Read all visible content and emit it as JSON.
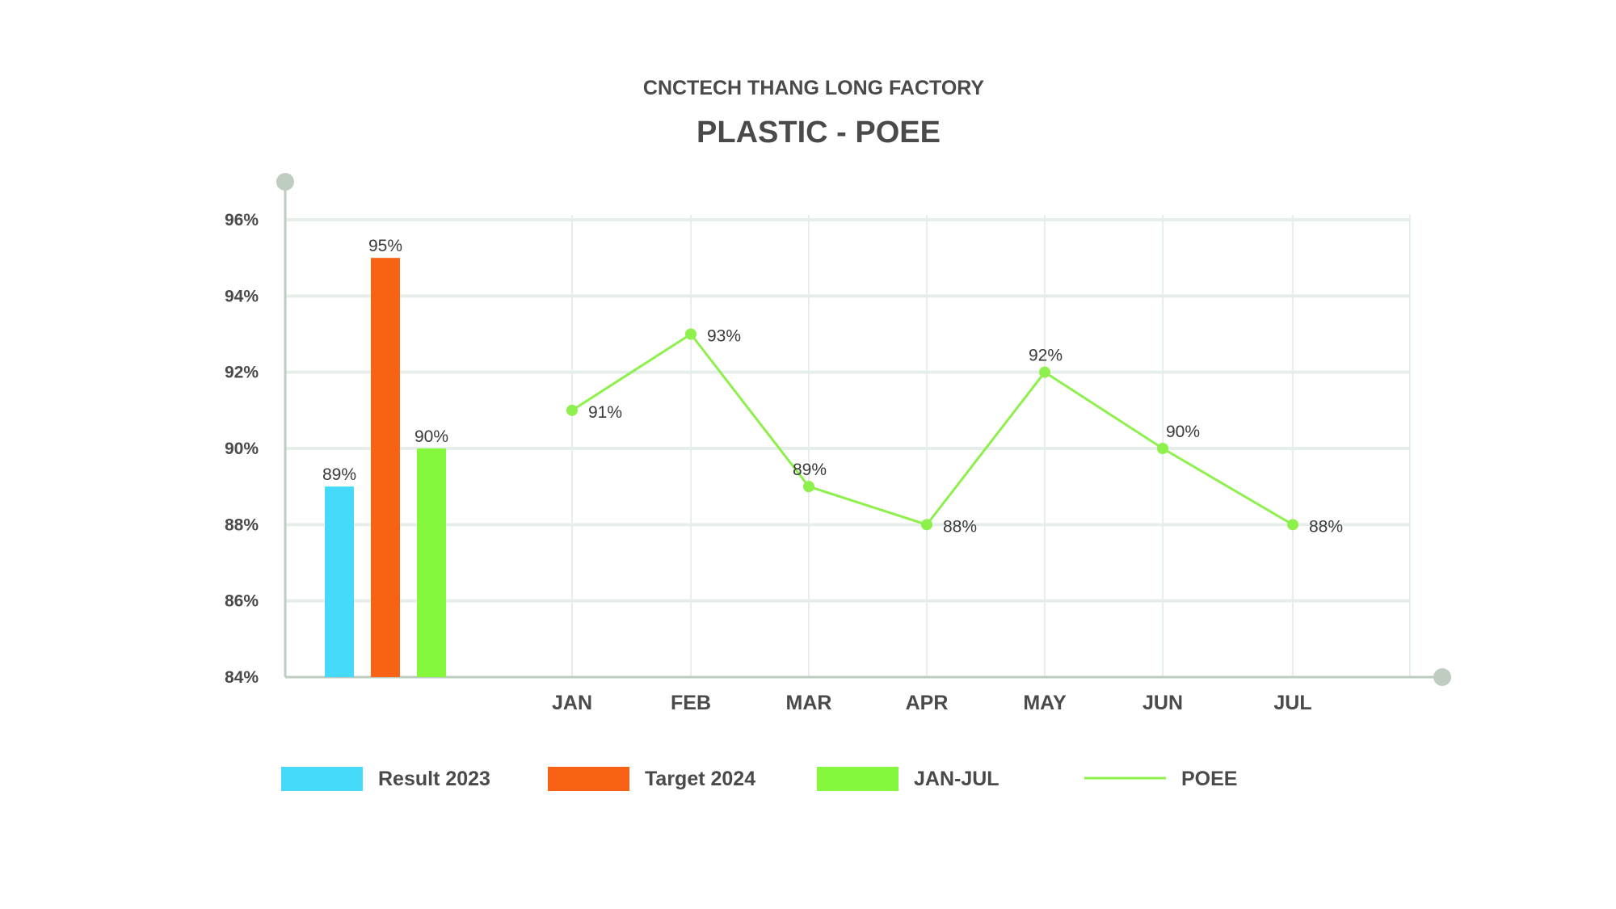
{
  "chart_data": {
    "type": "bar",
    "subtitle": "CNCTECH THANG LONG FACTORY",
    "title": "PLASTIC - POEE",
    "xlabel": "",
    "ylabel": "",
    "ylim": [
      84,
      96
    ],
    "yticks": [
      84,
      86,
      88,
      90,
      92,
      94,
      96
    ],
    "ytick_labels": [
      "84%",
      "86%",
      "88%",
      "90%",
      "92%",
      "94%",
      "96%"
    ],
    "grid": true,
    "legend_position": "bottom",
    "summary_bars": [
      {
        "name": "Result 2023",
        "value": 89,
        "label": "89%",
        "color": "#45d9fa"
      },
      {
        "name": "Target 2024",
        "value": 95,
        "label": "95%",
        "color": "#f76215"
      },
      {
        "name": "JAN-JUL",
        "value": 90,
        "label": "90%",
        "color": "#85f73c"
      }
    ],
    "categories": [
      "JAN",
      "FEB",
      "MAR",
      "APR",
      "MAY",
      "JUN",
      "JUL"
    ],
    "series": [
      {
        "name": "POEE",
        "type": "line",
        "color": "#8ef04c",
        "values": [
          91,
          93,
          89,
          88,
          92,
          90,
          88
        ],
        "labels": [
          "91%",
          "93%",
          "89%",
          "88%",
          "92%",
          "90%",
          "88%"
        ]
      }
    ],
    "legend": [
      "Result 2023",
      "Target 2024",
      "JAN-JUL",
      "POEE"
    ]
  },
  "colors": {
    "text": "#4a4a4a",
    "grid": "#e6eeea",
    "axis": "#bdccc0",
    "axis_marker": "#bfcdc0",
    "result_2023": "#45d9fa",
    "target_2024": "#f76215",
    "jan_jul": "#85f73c",
    "poee_line": "#8ef04c"
  }
}
